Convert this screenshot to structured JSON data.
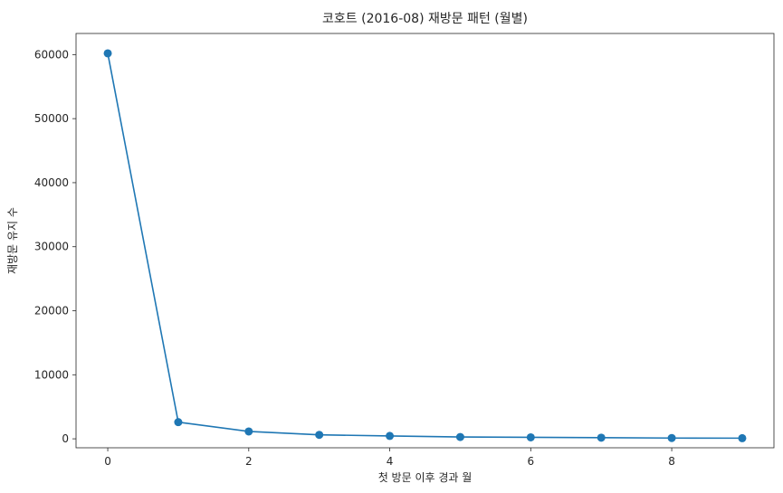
{
  "chart_data": {
    "type": "line",
    "title": "코호트 (2016-08) 재방문 패턴 (월별)",
    "xlabel": "첫 방문 이후 경과 월",
    "ylabel": "재방문 유지 수",
    "x": [
      0,
      1,
      2,
      3,
      4,
      5,
      6,
      7,
      8,
      9
    ],
    "series": [
      {
        "values": [
          60200,
          2600,
          1150,
          620,
          450,
          280,
          230,
          180,
          120,
          100
        ],
        "color": "#1f77b4",
        "marker": "circle"
      }
    ],
    "xlim": [
      -0.45,
      9.45
    ],
    "ylim": [
      -1400,
      63300
    ],
    "xticks": [
      0,
      2,
      4,
      6,
      8
    ],
    "yticks": [
      0,
      10000,
      20000,
      30000,
      40000,
      50000,
      60000
    ],
    "grid": false,
    "legend": "none"
  }
}
